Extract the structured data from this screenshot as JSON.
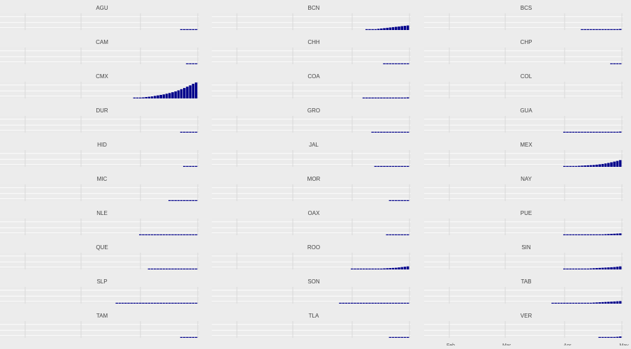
{
  "chart_data": {
    "type": "bar",
    "layout": "small-multiples facet grid, 3 columns x 10 rows",
    "bar_color": "#00008b",
    "panel_background": "#ebebeb",
    "grid_color": "#ffffff",
    "grid": true,
    "legend": "none",
    "x_ticks": [
      "Feb",
      "Mar",
      "Apr",
      "May"
    ],
    "ylim": [
      0,
      1
    ],
    "x_range_steps": 36,
    "facets": [
      {
        "label": "AGU",
        "start": 30,
        "values": [
          0.03,
          0.03,
          0.03,
          0.04,
          0.04,
          0.04
        ]
      },
      {
        "label": "BCN",
        "start": 25,
        "values": [
          0.02,
          0.03,
          0.04,
          0.05,
          0.07,
          0.09,
          0.11,
          0.13,
          0.15,
          0.17,
          0.19,
          0.21,
          0.23,
          0.25,
          0.27
        ]
      },
      {
        "label": "BCS",
        "start": 27,
        "values": [
          0.02,
          0.02,
          0.02,
          0.02,
          0.02,
          0.03,
          0.03,
          0.03,
          0.03,
          0.04,
          0.04,
          0.05,
          0.05,
          0.06
        ]
      },
      {
        "label": "CAM",
        "start": 32,
        "values": [
          0.02,
          0.02,
          0.03,
          0.03
        ]
      },
      {
        "label": "CHH",
        "start": 29,
        "values": [
          0.02,
          0.02,
          0.02,
          0.03,
          0.03,
          0.03,
          0.04,
          0.04,
          0.05
        ]
      },
      {
        "label": "CHP",
        "start": 32,
        "values": [
          0.02,
          0.02,
          0.02,
          0.03
        ]
      },
      {
        "label": "CMX",
        "start": 22,
        "values": [
          0.02,
          0.03,
          0.04,
          0.06,
          0.08,
          0.1,
          0.12,
          0.15,
          0.18,
          0.21,
          0.24,
          0.28,
          0.32,
          0.37,
          0.42,
          0.48,
          0.55,
          0.62,
          0.7,
          0.78,
          0.87,
          0.95
        ]
      },
      {
        "label": "COA",
        "start": 25,
        "values": [
          0.02,
          0.02,
          0.02,
          0.02,
          0.02,
          0.02,
          0.03,
          0.03,
          0.03,
          0.03,
          0.04,
          0.04,
          0.04,
          0.05,
          0.05,
          0.06
        ]
      },
      {
        "label": "COL",
        "start": 0,
        "values": []
      },
      {
        "label": "DUR",
        "start": 31,
        "values": [
          0.02,
          0.02,
          0.02,
          0.02,
          0.03,
          0.03
        ]
      },
      {
        "label": "GRO",
        "start": 27,
        "values": [
          0.02,
          0.02,
          0.02,
          0.02,
          0.02,
          0.02,
          0.02,
          0.03,
          0.03,
          0.03,
          0.04,
          0.04,
          0.05
        ]
      },
      {
        "label": "GUA",
        "start": 23,
        "values": [
          0.01,
          0.01,
          0.01,
          0.02,
          0.02,
          0.02,
          0.02,
          0.02,
          0.02,
          0.02,
          0.02,
          0.03,
          0.03,
          0.03,
          0.04,
          0.04,
          0.04,
          0.05,
          0.05,
          0.06
        ]
      },
      {
        "label": "HID",
        "start": 32,
        "values": [
          0.02,
          0.02,
          0.02,
          0.03,
          0.04
        ]
      },
      {
        "label": "JAL",
        "start": 28,
        "values": [
          0.02,
          0.02,
          0.02,
          0.02,
          0.02,
          0.02,
          0.02,
          0.03,
          0.03,
          0.03,
          0.04,
          0.05
        ]
      },
      {
        "label": "MEX",
        "start": 24,
        "values": [
          0.02,
          0.02,
          0.03,
          0.04,
          0.05,
          0.06,
          0.07,
          0.08,
          0.09,
          0.1,
          0.11,
          0.13,
          0.15,
          0.17,
          0.2,
          0.23,
          0.27,
          0.31,
          0.35,
          0.4
        ]
      },
      {
        "label": "MIC",
        "start": 30,
        "values": [
          0.02,
          0.02,
          0.02,
          0.02,
          0.02,
          0.02,
          0.03,
          0.03,
          0.04,
          0.05
        ]
      },
      {
        "label": "MOR",
        "start": 30,
        "values": [
          0.02,
          0.02,
          0.02,
          0.02,
          0.03,
          0.03,
          0.04
        ]
      },
      {
        "label": "NAY",
        "start": 0,
        "values": []
      },
      {
        "label": "NLE",
        "start": 24,
        "values": [
          0.02,
          0.02,
          0.02,
          0.02,
          0.02,
          0.02,
          0.02,
          0.02,
          0.02,
          0.02,
          0.02,
          0.02,
          0.03,
          0.03,
          0.03,
          0.03,
          0.04,
          0.04,
          0.05,
          0.05
        ]
      },
      {
        "label": "OAX",
        "start": 29,
        "values": [
          0.02,
          0.02,
          0.02,
          0.02,
          0.02,
          0.02,
          0.03,
          0.03
        ]
      },
      {
        "label": "PUE",
        "start": 23,
        "values": [
          0.02,
          0.02,
          0.02,
          0.02,
          0.02,
          0.02,
          0.03,
          0.03,
          0.03,
          0.03,
          0.04,
          0.04,
          0.05,
          0.05,
          0.06,
          0.07,
          0.08,
          0.09,
          0.1,
          0.11
        ]
      },
      {
        "label": "QUE",
        "start": 27,
        "values": [
          0.01,
          0.01,
          0.01,
          0.01,
          0.01,
          0.01,
          0.01,
          0.02,
          0.02,
          0.02,
          0.02,
          0.02,
          0.02,
          0.03,
          0.03,
          0.03,
          0.04
        ]
      },
      {
        "label": "ROO",
        "start": 24,
        "values": [
          0.02,
          0.02,
          0.02,
          0.02,
          0.02,
          0.02,
          0.02,
          0.02,
          0.03,
          0.04,
          0.05,
          0.06,
          0.07,
          0.08,
          0.09,
          0.1,
          0.12,
          0.14,
          0.16,
          0.18
        ]
      },
      {
        "label": "SIN",
        "start": 24,
        "values": [
          0.02,
          0.02,
          0.02,
          0.02,
          0.02,
          0.03,
          0.03,
          0.04,
          0.05,
          0.06,
          0.07,
          0.08,
          0.09,
          0.1,
          0.11,
          0.12,
          0.13,
          0.14,
          0.16,
          0.18
        ]
      },
      {
        "label": "SLP",
        "start": 18,
        "values": [
          0.01,
          0.01,
          0.01,
          0.01,
          0.01,
          0.01,
          0.01,
          0.01,
          0.01,
          0.01,
          0.01,
          0.01,
          0.01,
          0.01,
          0.01,
          0.01,
          0.01,
          0.02,
          0.02,
          0.02,
          0.02,
          0.02,
          0.02,
          0.02,
          0.02,
          0.02,
          0.03,
          0.03
        ]
      },
      {
        "label": "SON",
        "start": 22,
        "values": [
          0.01,
          0.01,
          0.01,
          0.01,
          0.01,
          0.01,
          0.01,
          0.01,
          0.01,
          0.01,
          0.01,
          0.01,
          0.01,
          0.01,
          0.01,
          0.01,
          0.01,
          0.01,
          0.02,
          0.02,
          0.02,
          0.02,
          0.03,
          0.03
        ]
      },
      {
        "label": "TAB",
        "start": 22,
        "values": [
          0.02,
          0.02,
          0.02,
          0.02,
          0.02,
          0.02,
          0.02,
          0.02,
          0.02,
          0.02,
          0.03,
          0.03,
          0.04,
          0.05,
          0.06,
          0.07,
          0.08,
          0.09,
          0.1,
          0.11,
          0.12,
          0.13,
          0.14,
          0.15
        ]
      },
      {
        "label": "TAM",
        "start": 31,
        "values": [
          0.02,
          0.02,
          0.02,
          0.03,
          0.04,
          0.05
        ]
      },
      {
        "label": "TLA",
        "start": 30,
        "values": [
          0.01,
          0.01,
          0.02,
          0.02,
          0.02,
          0.02,
          0.03
        ]
      },
      {
        "label": "VER",
        "start": 29,
        "values": [
          0.02,
          0.02,
          0.02,
          0.02,
          0.03,
          0.04,
          0.06,
          0.08
        ]
      }
    ]
  }
}
